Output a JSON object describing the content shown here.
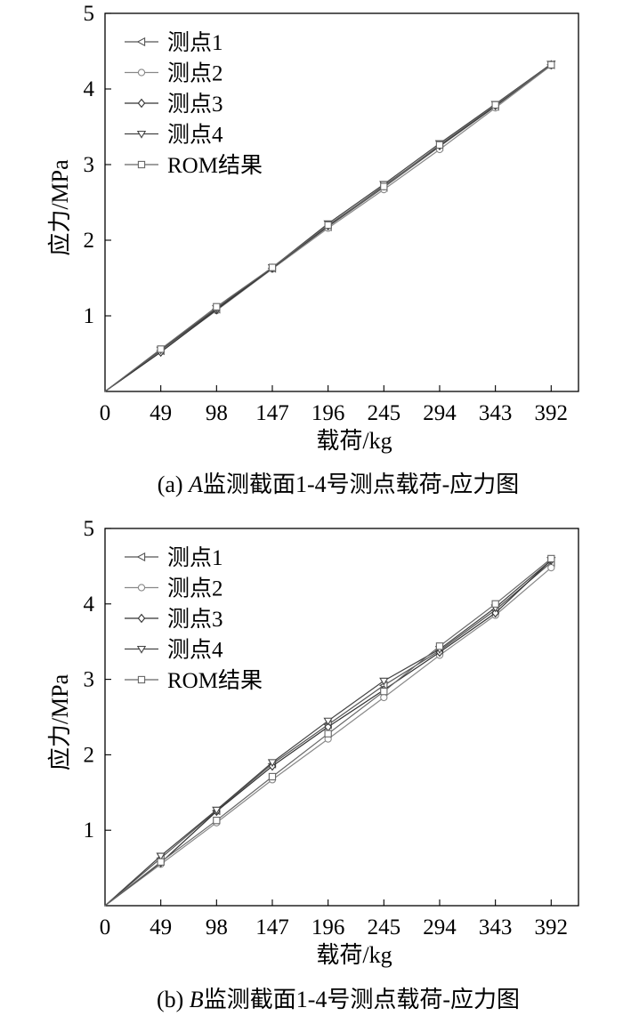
{
  "figure": {
    "panels": [
      {
        "caption_prefix": "(a) ",
        "caption_italic": "A",
        "caption_rest": "监测截面1-4号测点载荷-应力图"
      },
      {
        "caption_prefix": "(b) ",
        "caption_italic": "B",
        "caption_rest": "监测截面1-4号测点载荷-应力图"
      }
    ]
  },
  "chart_data": [
    {
      "type": "line",
      "xlabel": "载荷/kg",
      "ylabel": "应力/MPa",
      "x": [
        0,
        49,
        98,
        147,
        196,
        245,
        294,
        343,
        392
      ],
      "xlim": [
        0,
        416
      ],
      "ylim": [
        0,
        5
      ],
      "yticks": [
        1,
        2,
        3,
        4,
        5
      ],
      "legend_position": "top-left",
      "series": [
        {
          "name": "测点1",
          "marker": "triangle-left",
          "values": [
            0,
            0.54,
            1.09,
            1.63,
            2.18,
            2.7,
            3.24,
            3.77,
            4.32
          ]
        },
        {
          "name": "测点2",
          "marker": "circle",
          "values": [
            0,
            0.53,
            1.07,
            1.62,
            2.16,
            2.67,
            3.2,
            3.75,
            4.31
          ]
        },
        {
          "name": "测点3",
          "marker": "diamond",
          "values": [
            0,
            0.52,
            1.08,
            1.63,
            2.19,
            2.72,
            3.25,
            3.78,
            4.32
          ]
        },
        {
          "name": "测点4",
          "marker": "triangle-down",
          "values": [
            0,
            0.55,
            1.1,
            1.64,
            2.22,
            2.74,
            3.28,
            3.8,
            4.33
          ]
        },
        {
          "name": "ROM结果",
          "marker": "square",
          "values": [
            0,
            0.56,
            1.12,
            1.64,
            2.2,
            2.71,
            3.26,
            3.79,
            4.32
          ]
        }
      ]
    },
    {
      "type": "line",
      "xlabel": "载荷/kg",
      "ylabel": "应力/MPa",
      "x": [
        0,
        49,
        98,
        147,
        196,
        245,
        294,
        343,
        392
      ],
      "xlim": [
        0,
        416
      ],
      "ylim": [
        0,
        5
      ],
      "yticks": [
        1,
        2,
        3,
        4,
        5
      ],
      "legend_position": "top-left",
      "series": [
        {
          "name": "测点1",
          "marker": "triangle-left",
          "values": [
            0,
            0.63,
            1.26,
            1.88,
            2.4,
            2.92,
            3.38,
            3.92,
            4.55
          ]
        },
        {
          "name": "测点2",
          "marker": "circle",
          "values": [
            0,
            0.55,
            1.1,
            1.67,
            2.21,
            2.76,
            3.32,
            3.85,
            4.48
          ]
        },
        {
          "name": "测点3",
          "marker": "diamond",
          "values": [
            0,
            0.57,
            1.25,
            1.85,
            2.37,
            2.86,
            3.36,
            3.88,
            4.58
          ]
        },
        {
          "name": "测点4",
          "marker": "triangle-down",
          "values": [
            0,
            0.66,
            1.27,
            1.9,
            2.45,
            2.98,
            3.4,
            3.95,
            4.58
          ]
        },
        {
          "name": "ROM结果",
          "marker": "square",
          "values": [
            0,
            0.58,
            1.13,
            1.71,
            2.28,
            2.84,
            3.44,
            4.0,
            4.6
          ]
        }
      ]
    }
  ]
}
